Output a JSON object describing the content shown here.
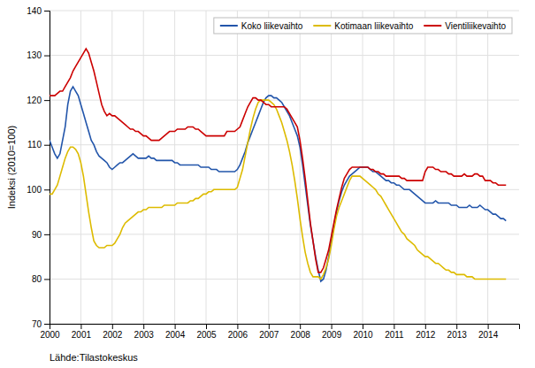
{
  "chart_data": {
    "type": "line",
    "ylabel": "Indeksi (2010=100)",
    "source": "Lähde:Tilastokeskus",
    "xlim": [
      2000,
      2015
    ],
    "xticks": [
      2000,
      2001,
      2002,
      2003,
      2004,
      2005,
      2006,
      2007,
      2008,
      2009,
      2010,
      2011,
      2012,
      2013,
      2014
    ],
    "ylim": [
      70,
      140
    ],
    "yticks": [
      70,
      80,
      90,
      100,
      110,
      120,
      130,
      140
    ],
    "grid": true,
    "legend": "upper right",
    "x": [
      2000,
      2000.0833333333,
      2000.1666666667,
      2000.25,
      2000.3333333333,
      2000.4166666667,
      2000.5,
      2000.5833333333,
      2000.6666666667,
      2000.75,
      2000.8333333333,
      2000.9166666667,
      2001,
      2001.0833333333,
      2001.1666666667,
      2001.25,
      2001.3333333333,
      2001.4166666667,
      2001.5,
      2001.5833333333,
      2001.6666666667,
      2001.75,
      2001.8333333333,
      2001.9166666667,
      2002,
      2002.0833333333,
      2002.1666666667,
      2002.25,
      2002.3333333333,
      2002.4166666667,
      2002.5,
      2002.5833333333,
      2002.6666666667,
      2002.75,
      2002.8333333333,
      2002.9166666667,
      2003,
      2003.0833333333,
      2003.1666666667,
      2003.25,
      2003.3333333333,
      2003.4166666667,
      2003.5,
      2003.5833333333,
      2003.6666666667,
      2003.75,
      2003.8333333333,
      2003.9166666667,
      2004,
      2004.0833333333,
      2004.1666666667,
      2004.25,
      2004.3333333333,
      2004.4166666667,
      2004.5,
      2004.5833333333,
      2004.6666666667,
      2004.75,
      2004.8333333333,
      2004.9166666667,
      2005,
      2005.0833333333,
      2005.1666666667,
      2005.25,
      2005.3333333333,
      2005.4166666667,
      2005.5,
      2005.5833333333,
      2005.6666666667,
      2005.75,
      2005.8333333333,
      2005.9166666667,
      2006,
      2006.0833333333,
      2006.1666666667,
      2006.25,
      2006.3333333333,
      2006.4166666667,
      2006.5,
      2006.5833333333,
      2006.6666666667,
      2006.75,
      2006.8333333333,
      2006.9166666667,
      2007,
      2007.0833333333,
      2007.1666666667,
      2007.25,
      2007.3333333333,
      2007.4166666667,
      2007.5,
      2007.5833333333,
      2007.6666666667,
      2007.75,
      2007.8333333333,
      2007.9166666667,
      2008,
      2008.0833333333,
      2008.1666666667,
      2008.25,
      2008.3333333333,
      2008.4166666667,
      2008.5,
      2008.5833333333,
      2008.6666666667,
      2008.75,
      2008.8333333333,
      2008.9166666667,
      2009,
      2009.0833333333,
      2009.1666666667,
      2009.25,
      2009.3333333333,
      2009.4166666667,
      2009.5,
      2009.5833333333,
      2009.6666666667,
      2009.75,
      2009.8333333333,
      2009.9166666667,
      2010,
      2010.0833333333,
      2010.1666666667,
      2010.25,
      2010.3333333333,
      2010.4166666667,
      2010.5,
      2010.5833333333,
      2010.6666666667,
      2010.75,
      2010.8333333333,
      2010.9166666667,
      2011,
      2011.0833333333,
      2011.1666666667,
      2011.25,
      2011.3333333333,
      2011.4166666667,
      2011.5,
      2011.5833333333,
      2011.6666666667,
      2011.75,
      2011.8333333333,
      2011.9166666667,
      2012,
      2012.0833333333,
      2012.1666666667,
      2012.25,
      2012.3333333333,
      2012.4166666667,
      2012.5,
      2012.5833333333,
      2012.6666666667,
      2012.75,
      2012.8333333333,
      2012.9166666667,
      2013,
      2013.0833333333,
      2013.1666666667,
      2013.25,
      2013.3333333333,
      2013.4166666667,
      2013.5,
      2013.5833333333,
      2013.6666666667,
      2013.75,
      2013.8333333333,
      2013.9166666667,
      2014,
      2014.0833333333,
      2014.1666666667,
      2014.25,
      2014.3333333333,
      2014.4166666667,
      2014.5,
      2014.5833333333
    ],
    "series": [
      {
        "name": "Koko liikevaihto",
        "color": "#2255aa",
        "values": [
          111,
          109.5,
          108,
          107,
          108,
          111,
          114,
          119,
          122,
          123,
          122,
          121,
          119,
          117,
          115,
          113,
          111,
          110,
          108.5,
          107.5,
          107,
          106.5,
          106,
          105,
          104.5,
          105,
          105.5,
          106,
          106,
          106.5,
          107,
          107.5,
          108,
          107.5,
          107,
          107,
          107,
          107,
          107.5,
          107,
          107,
          106.5,
          106.5,
          106.5,
          106.5,
          106.5,
          106.5,
          106.5,
          106,
          106,
          105.5,
          105.5,
          105.5,
          105.5,
          105.5,
          105.5,
          105.5,
          105.5,
          105,
          105,
          105,
          105,
          104.5,
          104.5,
          104.5,
          104,
          104,
          104,
          104,
          104,
          104,
          104,
          104.5,
          105.5,
          107,
          108.5,
          110.5,
          112,
          113.5,
          115,
          116.5,
          118,
          119.5,
          120.5,
          121,
          121,
          120.5,
          120.5,
          120,
          119.5,
          118.5,
          117.5,
          116.5,
          115,
          113.5,
          112,
          109.5,
          105.5,
          101,
          96.5,
          92,
          88.5,
          85,
          82,
          79.5,
          80,
          82,
          85,
          88.5,
          92,
          95,
          97.5,
          99.5,
          101,
          102,
          103,
          103.5,
          104,
          104.5,
          105,
          105,
          105,
          105,
          104.5,
          104,
          104,
          103.5,
          103,
          102.5,
          102,
          102,
          101.5,
          101.5,
          101,
          101,
          100.5,
          100,
          100,
          100,
          99.5,
          99,
          98.5,
          98,
          97.5,
          97,
          97,
          97,
          97,
          97.5,
          97,
          97,
          97,
          97,
          97,
          96.5,
          96.5,
          96.5,
          96,
          96,
          96,
          96,
          96.5,
          96,
          96,
          96,
          96.5,
          96,
          95.5,
          95.5,
          95,
          94.5,
          94.5,
          94,
          93.5,
          93.5,
          93
        ]
      },
      {
        "name": "Kotimaan liikevaihto",
        "color": "#ddbb00",
        "values": [
          99,
          99,
          100,
          101,
          103,
          105,
          107,
          108.5,
          109.5,
          109.5,
          109,
          108,
          106,
          103,
          99,
          95,
          91.5,
          88.5,
          87.5,
          87,
          87,
          87,
          87.5,
          87.5,
          87.5,
          88,
          89,
          90,
          91.5,
          92.5,
          93,
          93.5,
          94,
          94.5,
          95,
          95,
          95.5,
          95.5,
          96,
          96,
          96,
          96,
          96,
          96,
          96.5,
          96.5,
          96.5,
          96.5,
          96.5,
          97,
          97,
          97,
          97,
          97,
          97.5,
          97.5,
          98,
          98,
          98.5,
          99,
          99,
          99.5,
          99.5,
          100,
          100,
          100,
          100,
          100,
          100,
          100,
          100,
          100,
          100.5,
          102.5,
          104.5,
          107.5,
          110.5,
          113.5,
          116,
          118,
          119.5,
          120,
          120,
          120,
          120,
          119.5,
          119,
          118,
          116.5,
          115,
          113,
          111,
          108.5,
          105.5,
          102,
          98,
          93.5,
          89.5,
          86,
          83.5,
          81.5,
          80.5,
          80.5,
          80.5,
          80,
          81,
          82.5,
          84.5,
          87.5,
          91,
          94,
          96,
          97.5,
          99,
          100.5,
          102,
          103,
          103,
          103,
          103,
          102.5,
          102,
          101.5,
          101,
          100.5,
          100,
          99,
          98.5,
          97.5,
          96.5,
          95.5,
          94.5,
          93.5,
          92.5,
          91.5,
          90.5,
          90,
          89,
          88.5,
          88,
          87.5,
          86.5,
          86,
          85.5,
          85,
          85,
          84.5,
          84,
          83.5,
          83.5,
          83,
          82.5,
          82,
          82,
          81.5,
          81.5,
          81,
          81,
          81,
          81,
          80.5,
          80.5,
          80.5,
          80,
          80,
          80,
          80,
          80,
          80,
          80,
          80,
          80,
          80,
          80,
          80,
          80
        ]
      },
      {
        "name": "Vientiliikevaihto",
        "color": "#cc0000",
        "values": [
          121,
          121,
          121,
          121.5,
          122,
          122,
          123,
          124,
          125,
          126.5,
          127.5,
          128.5,
          129.5,
          130.5,
          131.5,
          130.5,
          128.5,
          126.5,
          124,
          121.5,
          119,
          117.5,
          116.5,
          117,
          116.5,
          116.5,
          116,
          115.5,
          115,
          114.5,
          114,
          113.5,
          113.5,
          113,
          113,
          112.5,
          112,
          112,
          111.5,
          111,
          111,
          111,
          111,
          111.5,
          112,
          112.5,
          113,
          113,
          113,
          113.5,
          113.5,
          113.5,
          113.5,
          114,
          114,
          114,
          113.5,
          113.5,
          113,
          112.5,
          112,
          112,
          112,
          112,
          112,
          112,
          112,
          112,
          113,
          113,
          113,
          113,
          113.5,
          114,
          115.5,
          117,
          118.5,
          119.5,
          120.5,
          120.5,
          120,
          120,
          119.5,
          119,
          119,
          118.5,
          118.5,
          118.5,
          118.5,
          118.5,
          118.5,
          118,
          117,
          116,
          115,
          114,
          111,
          107,
          102.5,
          97.5,
          92.5,
          88.5,
          84.5,
          81.5,
          81.5,
          82.5,
          84.5,
          86.5,
          89.5,
          92.5,
          95.5,
          98,
          100.5,
          102.5,
          103.5,
          104.5,
          105,
          105,
          105,
          105,
          105,
          105,
          105,
          104.5,
          104.5,
          104,
          104,
          103.5,
          103.5,
          103,
          103,
          103,
          103,
          103,
          103,
          102.5,
          102.5,
          102,
          102,
          102,
          102,
          102,
          102,
          102,
          104,
          105,
          105,
          105,
          104.5,
          104.5,
          104,
          104,
          104,
          103.5,
          103.5,
          103,
          103,
          103,
          103,
          103.5,
          103,
          103,
          103,
          103.5,
          103.5,
          103,
          103,
          102,
          102,
          102,
          101.5,
          101.5,
          101,
          101,
          101,
          101
        ]
      }
    ]
  }
}
